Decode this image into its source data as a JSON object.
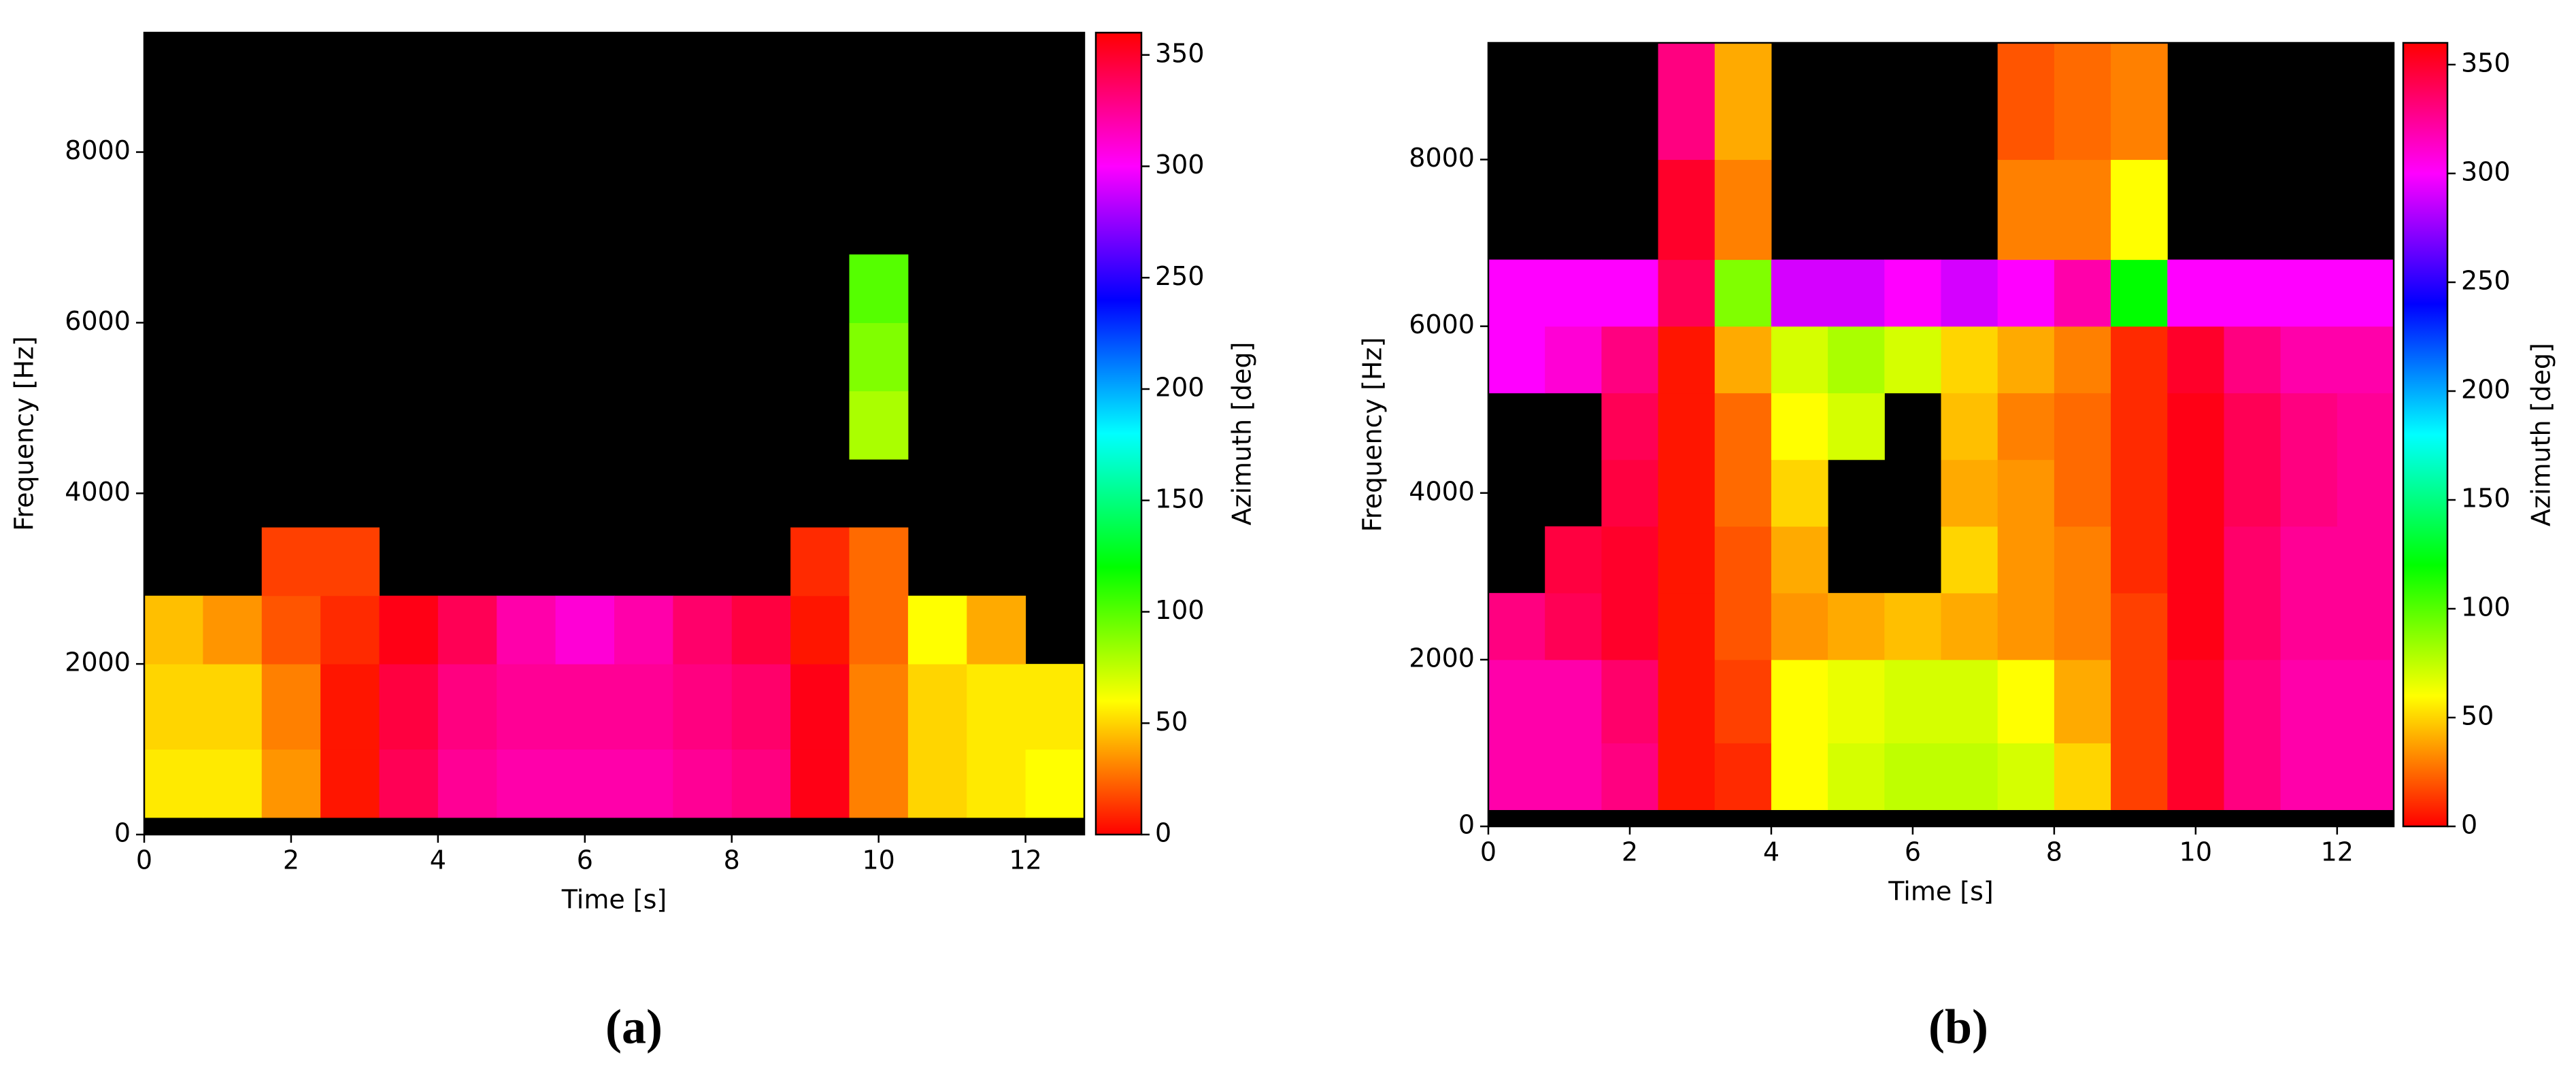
{
  "chart_data": [
    {
      "type": "heatmap",
      "label": "(a)",
      "xlabel": "Time [s]",
      "ylabel": "Frequency [Hz]",
      "xlim": [
        0,
        12.8
      ],
      "ylim": [
        0,
        9400
      ],
      "xticks": [
        0,
        2,
        4,
        6,
        8,
        10,
        12
      ],
      "yticks": [
        0,
        2000,
        4000,
        6000,
        8000
      ],
      "x_edges": [
        0,
        0.8,
        1.6,
        2.4,
        3.2,
        4,
        4.8,
        5.6,
        6.4,
        7.2,
        8,
        8.8,
        9.6,
        10.4,
        11.2,
        12,
        12.8
      ],
      "y_edges": [
        0,
        200,
        1000,
        2000,
        2800,
        3600,
        4400,
        5200,
        6000,
        6800,
        8000,
        9400
      ],
      "z": [
        [
          null,
          null,
          null,
          null,
          null,
          null,
          null,
          null,
          null,
          null,
          null,
          null,
          null,
          null,
          null,
          null
        ],
        [
          55,
          55,
          35,
          5,
          340,
          325,
          320,
          320,
          320,
          325,
          330,
          355,
          30,
          50,
          55,
          60
        ],
        [
          50,
          50,
          30,
          5,
          345,
          330,
          325,
          325,
          325,
          330,
          335,
          355,
          30,
          50,
          55,
          55
        ],
        [
          45,
          35,
          20,
          10,
          355,
          340,
          320,
          310,
          320,
          335,
          345,
          5,
          25,
          60,
          40,
          null
        ],
        [
          null,
          null,
          15,
          15,
          null,
          null,
          null,
          null,
          null,
          null,
          null,
          10,
          25,
          null,
          null,
          null
        ],
        [
          null,
          null,
          null,
          null,
          null,
          null,
          null,
          null,
          null,
          null,
          null,
          null,
          null,
          null,
          null,
          null
        ],
        [
          null,
          null,
          null,
          null,
          null,
          null,
          null,
          null,
          null,
          null,
          null,
          null,
          80,
          null,
          null,
          null
        ],
        [
          null,
          null,
          null,
          null,
          null,
          null,
          null,
          null,
          null,
          null,
          null,
          null,
          90,
          null,
          null,
          null
        ],
        [
          null,
          null,
          null,
          null,
          null,
          null,
          null,
          null,
          null,
          null,
          null,
          null,
          100,
          null,
          null,
          null
        ],
        [
          null,
          null,
          null,
          null,
          null,
          null,
          null,
          null,
          null,
          null,
          null,
          null,
          null,
          null,
          null,
          null
        ],
        [
          null,
          null,
          null,
          null,
          null,
          null,
          null,
          null,
          null,
          null,
          null,
          null,
          null,
          null,
          null,
          null
        ]
      ],
      "colorbar": {
        "label": "Azimuth [deg]",
        "lim": [
          0,
          360
        ],
        "ticks": [
          0,
          50,
          100,
          150,
          200,
          250,
          300,
          350
        ],
        "colormap": "hsv"
      }
    },
    {
      "type": "heatmap",
      "label": "(b)",
      "xlabel": "Time [s]",
      "ylabel": "Frequency [Hz]",
      "xlim": [
        0,
        12.8
      ],
      "ylim": [
        0,
        9400
      ],
      "xticks": [
        0,
        2,
        4,
        6,
        8,
        10,
        12
      ],
      "yticks": [
        0,
        2000,
        4000,
        6000,
        8000
      ],
      "x_edges": [
        0,
        0.8,
        1.6,
        2.4,
        3.2,
        4,
        4.8,
        5.6,
        6.4,
        7.2,
        8,
        8.8,
        9.6,
        10.4,
        11.2,
        12,
        12.8
      ],
      "y_edges": [
        0,
        200,
        1000,
        2000,
        2800,
        3600,
        4400,
        5200,
        6000,
        6800,
        8000,
        9400
      ],
      "z": [
        [
          null,
          null,
          null,
          null,
          null,
          null,
          null,
          null,
          null,
          null,
          null,
          null,
          null,
          null,
          null,
          null
        ],
        [
          320,
          320,
          330,
          5,
          10,
          60,
          70,
          75,
          75,
          70,
          50,
          15,
          350,
          330,
          320,
          320
        ],
        [
          320,
          320,
          335,
          5,
          15,
          60,
          65,
          70,
          70,
          60,
          40,
          15,
          350,
          330,
          320,
          320
        ],
        [
          330,
          340,
          350,
          5,
          20,
          35,
          40,
          45,
          40,
          35,
          30,
          15,
          355,
          335,
          325,
          325
        ],
        [
          null,
          345,
          350,
          5,
          20,
          40,
          null,
          null,
          50,
          35,
          30,
          10,
          355,
          335,
          325,
          325
        ],
        [
          null,
          null,
          345,
          5,
          25,
          50,
          null,
          null,
          40,
          35,
          25,
          10,
          355,
          340,
          330,
          325
        ],
        [
          null,
          null,
          340,
          5,
          25,
          60,
          70,
          null,
          45,
          30,
          25,
          10,
          355,
          340,
          330,
          325
        ],
        [
          300,
          310,
          330,
          5,
          40,
          70,
          80,
          70,
          50,
          40,
          30,
          10,
          350,
          330,
          320,
          320
        ],
        [
          300,
          300,
          300,
          340,
          90,
          290,
          290,
          300,
          290,
          300,
          320,
          120,
          300,
          300,
          300,
          300
        ],
        [
          null,
          null,
          null,
          350,
          30,
          null,
          null,
          null,
          null,
          30,
          30,
          60,
          null,
          null,
          null,
          null
        ],
        [
          null,
          null,
          null,
          330,
          40,
          null,
          null,
          null,
          null,
          20,
          25,
          30,
          null,
          null,
          null,
          null
        ]
      ],
      "colorbar": {
        "label": "Azimuth [deg]",
        "lim": [
          0,
          360
        ],
        "ticks": [
          0,
          50,
          100,
          150,
          200,
          250,
          300,
          350
        ],
        "colormap": "hsv"
      }
    }
  ]
}
